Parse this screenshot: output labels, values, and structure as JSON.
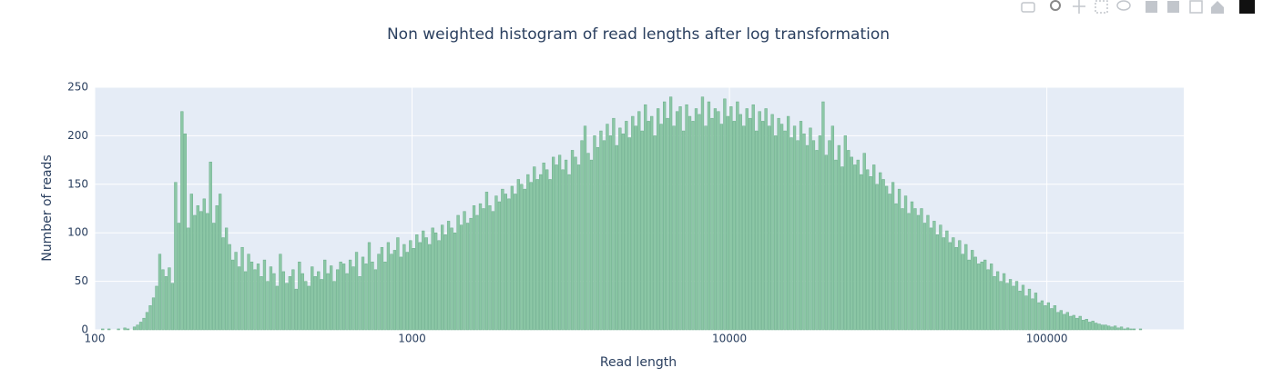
{
  "chart_data": {
    "type": "histogram",
    "title": "Non weighted histogram of read lengths after log transformation",
    "x_label": "Read length",
    "y_label": "Number of reads",
    "color": "#8cc7a6",
    "edge_color": "#6aae8a",
    "xlog": true,
    "grid": true,
    "xlim": [
      100,
      270000
    ],
    "xticks": [
      100,
      1000,
      10000,
      100000
    ],
    "ylim": [
      0,
      250
    ],
    "yticks": [
      0,
      50,
      100,
      150,
      200,
      250
    ],
    "bins": [
      104.7,
      107.2,
      109.6,
      112.2,
      114.8,
      117.5,
      120.2,
      123,
      125.9,
      128.8,
      131.8,
      134.9,
      138,
      141.3,
      144.5,
      147.9,
      151.4,
      154.9,
      158.5,
      162.2,
      166,
      169.8,
      173.8,
      177.8,
      182,
      186.2,
      190.5,
      195,
      199.5,
      204.2,
      208.9,
      213.8,
      218.8,
      223.9,
      229.1,
      234.4,
      239.9,
      245.5,
      251.2,
      257,
      263,
      269.2,
      275.4,
      281.8,
      288.4,
      295.1,
      302,
      309,
      316.2,
      323.6,
      331.1,
      338.8,
      346.7,
      354.8,
      363.1,
      371.5,
      380.2,
      389,
      398.1,
      407.4,
      416.9,
      426.6,
      436.5,
      446.7,
      457.1,
      467.7,
      478.6,
      489.8,
      501.2,
      512.9,
      524.8,
      537,
      549.5,
      562.3,
      575.4,
      588.8,
      602.6,
      616.6,
      631,
      645.7,
      660.7,
      676.1,
      691.8,
      707.9,
      724.4,
      741.3,
      758.6,
      776.2,
      794.3,
      812.8,
      831.8,
      851.1,
      871,
      891.3,
      912,
      933.3,
      955,
      977.2,
      1000,
      1023,
      1047,
      1072,
      1096,
      1122,
      1148,
      1175,
      1202,
      1230,
      1259,
      1288,
      1318,
      1349,
      1380,
      1413,
      1445,
      1479,
      1514,
      1549,
      1585,
      1622,
      1660,
      1698,
      1738,
      1778,
      1820,
      1862,
      1905,
      1950,
      1995,
      2042,
      2089,
      2138,
      2188,
      2239,
      2291,
      2344,
      2399,
      2455,
      2512,
      2570,
      2630,
      2692,
      2754,
      2818,
      2884,
      2951,
      3020,
      3090,
      3162,
      3236,
      3311,
      3388,
      3467,
      3548,
      3631,
      3715,
      3802,
      3890,
      3981,
      4074,
      4169,
      4266,
      4365,
      4467,
      4571,
      4677,
      4786,
      4898,
      5012,
      5129,
      5248,
      5370,
      5495,
      5623,
      5754,
      5888,
      6026,
      6166,
      6310,
      6457,
      6607,
      6761,
      6918,
      7079,
      7244,
      7413,
      7586,
      7762,
      7943,
      8128,
      8318,
      8511,
      8710,
      8913,
      9120,
      9333,
      9550,
      9772,
      10000,
      10230,
      10470,
      10720,
      10960,
      11220,
      11480,
      11750,
      12020,
      12300,
      12590,
      12880,
      13180,
      13490,
      13800,
      14130,
      14450,
      14790,
      15140,
      15490,
      15850,
      16220,
      16600,
      16980,
      17380,
      17780,
      18200,
      18620,
      19050,
      19500,
      19950,
      20420,
      20890,
      21380,
      21880,
      22390,
      22910,
      23440,
      23990,
      24550,
      25120,
      25700,
      26300,
      26920,
      27540,
      28180,
      28840,
      29510,
      30200,
      30900,
      31620,
      32360,
      33110,
      33880,
      34670,
      35480,
      36310,
      37150,
      38020,
      38900,
      39810,
      40740,
      41690,
      42660,
      43650,
      44670,
      45710,
      46770,
      47860,
      48980,
      50120,
      51290,
      52480,
      53700,
      54950,
      56230,
      57540,
      58880,
      60260,
      61660,
      63100,
      64570,
      66070,
      67610,
      69180,
      70790,
      72440,
      74130,
      75860,
      77620,
      79430,
      81280,
      83180,
      85110,
      87100,
      89130,
      91200,
      93330,
      95500,
      97720,
      100000,
      102300,
      104700,
      107200,
      109600,
      112200,
      114800,
      117500,
      120200,
      123000,
      125900,
      128800,
      131800,
      134900,
      138000,
      141300,
      144500,
      147900,
      151400,
      154900,
      158500,
      162200,
      166000,
      169800,
      173800,
      177800,
      182000,
      186200,
      190500,
      195000,
      199500
    ],
    "values": [
      1,
      0,
      1,
      0,
      0,
      1,
      0,
      2,
      1,
      0,
      3,
      5,
      8,
      12,
      18,
      25,
      33,
      45,
      78,
      62,
      55,
      64,
      48,
      152,
      110,
      225,
      202,
      105,
      140,
      118,
      128,
      122,
      135,
      120,
      173,
      110,
      128,
      140,
      95,
      105,
      88,
      72,
      80,
      65,
      85,
      60,
      78,
      70,
      62,
      68,
      55,
      72,
      50,
      65,
      58,
      45,
      78,
      60,
      48,
      55,
      62,
      42,
      70,
      58,
      50,
      45,
      65,
      55,
      60,
      52,
      72,
      58,
      66,
      50,
      62,
      70,
      68,
      58,
      72,
      65,
      80,
      55,
      75,
      68,
      90,
      70,
      62,
      78,
      85,
      70,
      90,
      78,
      82,
      95,
      75,
      88,
      80,
      92,
      84,
      98,
      90,
      102,
      95,
      88,
      105,
      100,
      92,
      108,
      98,
      112,
      105,
      100,
      118,
      108,
      122,
      110,
      115,
      128,
      118,
      130,
      125,
      142,
      128,
      122,
      138,
      132,
      145,
      140,
      135,
      148,
      140,
      155,
      150,
      145,
      160,
      152,
      168,
      155,
      160,
      172,
      165,
      155,
      178,
      170,
      180,
      165,
      175,
      160,
      185,
      178,
      170,
      195,
      210,
      182,
      175,
      200,
      188,
      205,
      195,
      212,
      200,
      218,
      190,
      208,
      202,
      215,
      198,
      220,
      210,
      225,
      205,
      232,
      215,
      220,
      200,
      228,
      212,
      235,
      218,
      240,
      210,
      225,
      230,
      205,
      232,
      220,
      215,
      228,
      222,
      240,
      210,
      235,
      218,
      228,
      225,
      212,
      238,
      220,
      230,
      215,
      235,
      222,
      210,
      228,
      218,
      232,
      205,
      225,
      215,
      228,
      210,
      222,
      200,
      218,
      212,
      205,
      220,
      198,
      210,
      195,
      215,
      202,
      190,
      208,
      195,
      185,
      200,
      235,
      180,
      195,
      210,
      175,
      190,
      168,
      200,
      185,
      178,
      170,
      175,
      160,
      182,
      165,
      158,
      170,
      150,
      162,
      155,
      148,
      140,
      152,
      130,
      145,
      125,
      138,
      120,
      132,
      125,
      118,
      125,
      110,
      118,
      105,
      112,
      98,
      108,
      95,
      102,
      90,
      95,
      85,
      92,
      78,
      88,
      72,
      82,
      75,
      68,
      70,
      72,
      62,
      68,
      55,
      60,
      50,
      58,
      48,
      52,
      45,
      50,
      40,
      46,
      35,
      42,
      32,
      38,
      28,
      30,
      25,
      28,
      22,
      25,
      18,
      20,
      16,
      18,
      14,
      15,
      12,
      14,
      10,
      11,
      8,
      9,
      7,
      6,
      5,
      5,
      4,
      3,
      4,
      2,
      3,
      1,
      2,
      1,
      1,
      0,
      1
    ]
  }
}
